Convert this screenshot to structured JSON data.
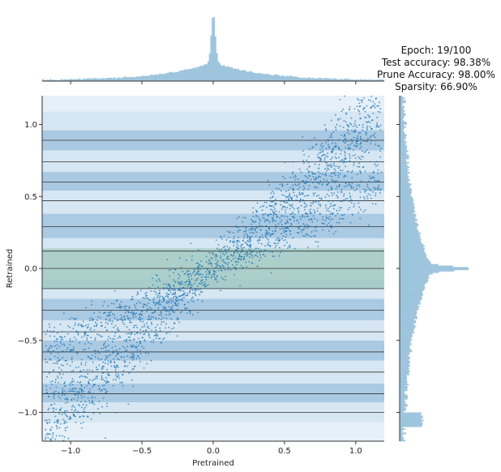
{
  "figure": {
    "title_lines": [
      "Epoch: 19/100",
      "Test accuracy: 98.38%",
      "Prune Accuracy: 98.00%",
      "Sparsity: 66.90%"
    ]
  },
  "chart_data": {
    "type": "scatter",
    "xlabel": "Pretrained",
    "ylabel": "Retrained",
    "xlim": [
      -1.2,
      1.2
    ],
    "ylim": [
      -1.2,
      1.2
    ],
    "xticks": [
      -1.0,
      -0.5,
      0.0,
      0.5,
      1.0
    ],
    "yticks": [
      -1.0,
      -0.5,
      0.0,
      0.5,
      1.0
    ],
    "xtick_labels": [
      "−1.0",
      "−0.5",
      "0.0",
      "0.5",
      "1.0"
    ],
    "ytick_labels": [
      "−1.0",
      "−0.5",
      "0.0",
      "0.5",
      "1.0"
    ],
    "grid": false,
    "colors": {
      "points": "#1f77b4",
      "histogram": "#9ec5dd",
      "band": "#d6e6f2",
      "band_dark": "#aac9e2",
      "band_light": "#e6f0f8",
      "band_zero": "#9fc7c2",
      "hline": "#333333"
    },
    "horizontal_lines": [
      -1.0,
      -0.87,
      -0.72,
      -0.58,
      -0.44,
      -0.29,
      -0.14,
      0.0,
      0.12,
      0.29,
      0.47,
      0.6,
      0.74,
      0.89
    ],
    "bands": [
      {
        "y0": -1.2,
        "y1": -1.07,
        "tone": "band_light"
      },
      {
        "y0": -1.07,
        "y1": -0.93,
        "tone": "band"
      },
      {
        "y0": -0.93,
        "y1": -0.8,
        "tone": "band_dark"
      },
      {
        "y0": -0.8,
        "y1": -0.64,
        "tone": "band"
      },
      {
        "y0": -0.64,
        "y1": -0.5,
        "tone": "band_dark"
      },
      {
        "y0": -0.5,
        "y1": -0.36,
        "tone": "band"
      },
      {
        "y0": -0.36,
        "y1": -0.21,
        "tone": "band_dark"
      },
      {
        "y0": -0.21,
        "y1": -0.07,
        "tone": "band"
      },
      {
        "y0": -0.14,
        "y1": 0.14,
        "tone": "band_zero"
      },
      {
        "y0": 0.14,
        "y1": 0.21,
        "tone": "band"
      },
      {
        "y0": 0.21,
        "y1": 0.38,
        "tone": "band_dark"
      },
      {
        "y0": 0.38,
        "y1": 0.54,
        "tone": "band"
      },
      {
        "y0": 0.54,
        "y1": 0.67,
        "tone": "band_dark"
      },
      {
        "y0": 0.67,
        "y1": 0.82,
        "tone": "band"
      },
      {
        "y0": 0.82,
        "y1": 0.96,
        "tone": "band_dark"
      },
      {
        "y0": 0.96,
        "y1": 1.09,
        "tone": "band"
      },
      {
        "y0": 1.09,
        "y1": 1.2,
        "tone": "band_light"
      }
    ],
    "point_distribution": {
      "description_of_structure": "correlated cloud along diagonal with flattening near y=0",
      "n_points": 2600,
      "x_range": [
        -1.2,
        1.2
      ],
      "slope": 0.92,
      "spread": 0.12,
      "near_zero_flatten": 0.45,
      "seed": 19
    },
    "x_hist": {
      "bins": 240,
      "range": [
        -1.2,
        1.2
      ],
      "peak_center": 0.0,
      "peak_width": 0.02,
      "core_width": 0.35
    },
    "y_hist": {
      "bins": 240,
      "range": [
        -1.2,
        1.2
      ],
      "peak_center": 0.0,
      "peak_width": 0.02,
      "core_width": 0.45
    }
  }
}
